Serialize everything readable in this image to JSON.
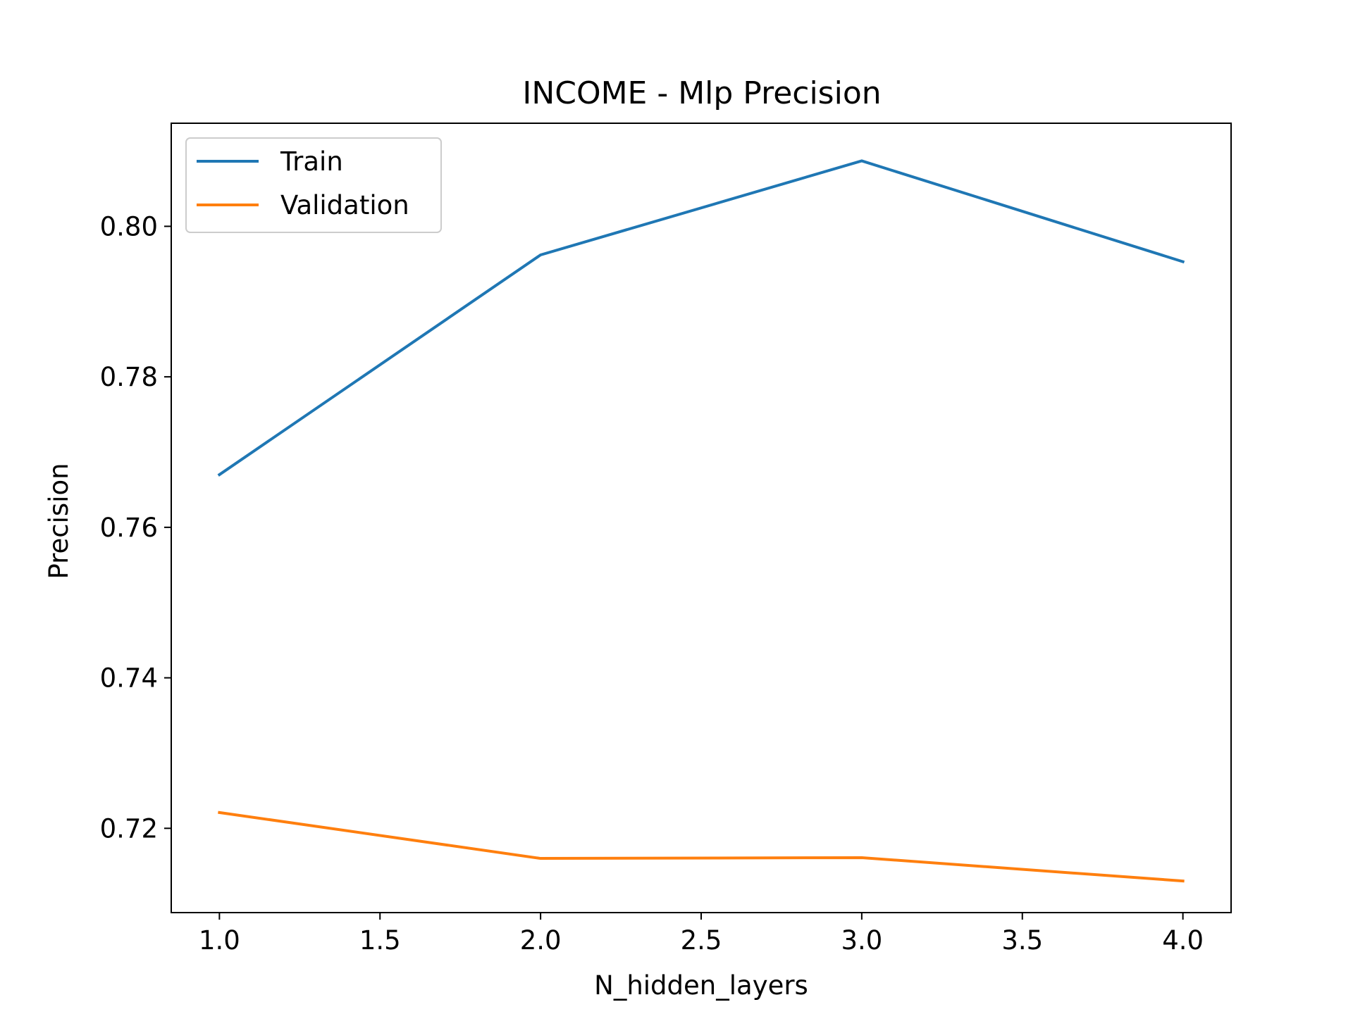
{
  "chart_data": {
    "type": "line",
    "title": "INCOME - Mlp Precision",
    "xlabel": "N_hidden_layers",
    "ylabel": "Precision",
    "x": [
      1.0,
      2.0,
      3.0,
      4.0
    ],
    "series": [
      {
        "name": "Train",
        "color": "#1f77b4",
        "values": [
          0.767,
          0.7962,
          0.8087,
          0.7953
        ]
      },
      {
        "name": "Validation",
        "color": "#ff7f0e",
        "values": [
          0.7221,
          0.716,
          0.7161,
          0.713
        ]
      }
    ],
    "xlim": [
      0.85,
      4.15
    ],
    "ylim": [
      0.7088,
      0.8137
    ],
    "xticks": [
      1.0,
      1.5,
      2.0,
      2.5,
      3.0,
      3.5,
      4.0
    ],
    "xtick_labels": [
      "1.0",
      "1.5",
      "2.0",
      "2.5",
      "3.0",
      "3.5",
      "4.0"
    ],
    "yticks": [
      0.72,
      0.74,
      0.76,
      0.78,
      0.8
    ],
    "ytick_labels": [
      "0.72",
      "0.74",
      "0.76",
      "0.78",
      "0.80"
    ],
    "grid": false,
    "legend": "upper-left"
  }
}
